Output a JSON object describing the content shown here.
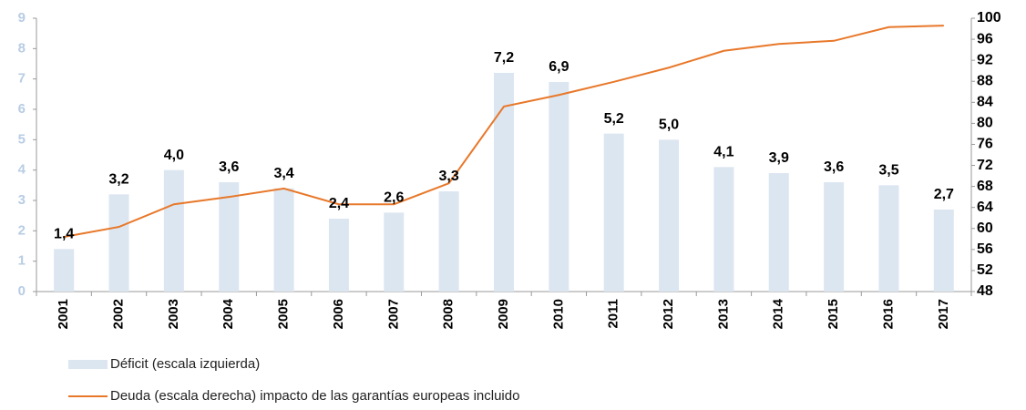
{
  "chart_data": {
    "type": "bar",
    "categories": [
      "2001",
      "2002",
      "2003",
      "2004",
      "2005",
      "2006",
      "2007",
      "2008",
      "2009",
      "2010",
      "2011",
      "2012",
      "2013",
      "2014",
      "2015",
      "2016",
      "2017"
    ],
    "series": [
      {
        "name": "Déficit (escala izquierda)",
        "type": "bar",
        "color": "#dce6f1",
        "values": [
          1.4,
          3.2,
          4.0,
          3.6,
          3.4,
          2.4,
          2.6,
          3.3,
          7.2,
          6.9,
          5.2,
          5.0,
          4.1,
          3.9,
          3.6,
          3.5,
          2.7
        ],
        "value_labels": [
          "1,4",
          "3,2",
          "4,0",
          "3,6",
          "3,4",
          "2,4",
          "2,6",
          "3,3",
          "7,2",
          "6,9",
          "5,2",
          "5,0",
          "4,1",
          "3,9",
          "3,6",
          "3,5",
          "2,7"
        ]
      },
      {
        "name": "Deuda (escala derecha) impacto de las garantías europeas incluido",
        "type": "line",
        "axis": "y2",
        "color": "#e8782a",
        "values": [
          58.4,
          60.3,
          64.6,
          66.0,
          67.6,
          64.6,
          64.6,
          68.6,
          83.2,
          85.4,
          87.9,
          90.6,
          93.8,
          95.1,
          95.7,
          98.3,
          98.6
        ]
      }
    ],
    "ylim": [
      0,
      9
    ],
    "yticks": [
      0,
      1,
      2,
      3,
      4,
      5,
      6,
      7,
      8,
      9
    ],
    "y2lim": [
      48,
      100
    ],
    "y2ticks": [
      48,
      52,
      56,
      60,
      64,
      68,
      72,
      76,
      80,
      84,
      88,
      92,
      96,
      100
    ]
  }
}
